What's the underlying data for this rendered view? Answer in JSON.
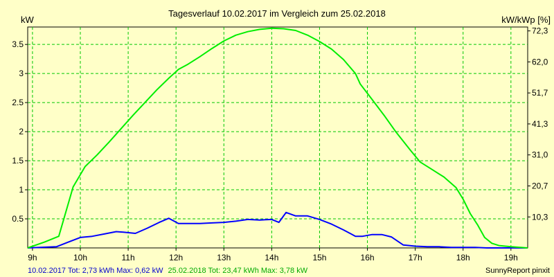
{
  "chart_data": {
    "type": "line",
    "title": "Tagesverlauf 10.02.2017 im Vergleich zum 25.02.2018",
    "ylabel_left": "kW",
    "ylabel_right": "kW/kWp [%]",
    "xlim": [
      8.9,
      19.35
    ],
    "ylim": [
      0,
      3.8
    ],
    "x_ticks": [
      9,
      10,
      11,
      12,
      13,
      14,
      15,
      16,
      17,
      18,
      19
    ],
    "x_tick_labels": [
      "9h",
      "10h",
      "11h",
      "12h",
      "13h",
      "14h",
      "15h",
      "16h",
      "17h",
      "18h",
      "19h"
    ],
    "y_ticks": [
      0.5,
      1,
      1.5,
      2,
      2.5,
      3,
      3.5
    ],
    "y_tick_labels": [
      "0.5",
      "1",
      "1.5",
      "2",
      "2.5",
      "3",
      "3.5"
    ],
    "y2_ticks": [
      0.533,
      1.066,
      1.6,
      2.133,
      2.666,
      3.2,
      3.733
    ],
    "y2_tick_labels": [
      "10,3",
      "20,7",
      "31,0",
      "41,3",
      "51,7",
      "62,0",
      "72,3"
    ],
    "grid": true,
    "series": [
      {
        "name": "10.02.2017",
        "color": "#0000ff",
        "x": [
          8.9,
          9.5,
          9.75,
          10.0,
          10.25,
          10.5,
          10.75,
          10.9,
          11.15,
          11.4,
          11.65,
          11.85,
          12.05,
          12.5,
          12.75,
          13.0,
          13.25,
          13.5,
          13.75,
          14.0,
          14.15,
          14.3,
          14.5,
          14.75,
          15.0,
          15.25,
          15.5,
          15.75,
          15.9,
          16.1,
          16.3,
          16.5,
          16.75,
          17.0,
          17.25,
          17.5,
          17.75,
          18.0,
          18.25,
          18.5,
          19.0,
          19.35
        ],
        "values": [
          0.0,
          0.02,
          0.1,
          0.18,
          0.2,
          0.24,
          0.28,
          0.27,
          0.25,
          0.34,
          0.44,
          0.51,
          0.42,
          0.42,
          0.43,
          0.44,
          0.46,
          0.49,
          0.48,
          0.49,
          0.44,
          0.61,
          0.55,
          0.55,
          0.49,
          0.41,
          0.31,
          0.2,
          0.2,
          0.23,
          0.23,
          0.19,
          0.05,
          0.03,
          0.02,
          0.02,
          0.01,
          0.01,
          0.01,
          0.0,
          0.0,
          0.0
        ]
      },
      {
        "name": "25.02.2018",
        "color": "#00ee00",
        "x": [
          8.9,
          9.25,
          9.55,
          9.85,
          10.1,
          10.35,
          10.6,
          10.85,
          11.1,
          11.35,
          11.6,
          11.85,
          12.05,
          12.25,
          12.5,
          12.75,
          13.0,
          13.25,
          13.5,
          13.75,
          14.0,
          14.25,
          14.5,
          14.75,
          15.0,
          15.25,
          15.5,
          15.75,
          15.85,
          16.1,
          16.35,
          16.6,
          16.9,
          17.1,
          17.35,
          17.6,
          17.85,
          18.0,
          18.15,
          18.3,
          18.45,
          18.6,
          18.75,
          19.0,
          19.35
        ],
        "values": [
          0.0,
          0.1,
          0.2,
          1.05,
          1.4,
          1.6,
          1.82,
          2.05,
          2.28,
          2.5,
          2.72,
          2.92,
          3.07,
          3.16,
          3.29,
          3.43,
          3.56,
          3.66,
          3.72,
          3.76,
          3.78,
          3.77,
          3.74,
          3.66,
          3.55,
          3.42,
          3.24,
          3.0,
          2.82,
          2.55,
          2.28,
          1.99,
          1.68,
          1.48,
          1.35,
          1.22,
          1.04,
          0.84,
          0.59,
          0.4,
          0.18,
          0.08,
          0.04,
          0.02,
          0.0
        ]
      }
    ],
    "footer": {
      "left_1": "10.02.2017 Tot: 2,73 kWh Max: 0,62 kW",
      "left_2": "25.02.2018 Tot: 23,47 kWh Max: 3,78 kW",
      "right": "SunnyReport pinxit"
    }
  }
}
